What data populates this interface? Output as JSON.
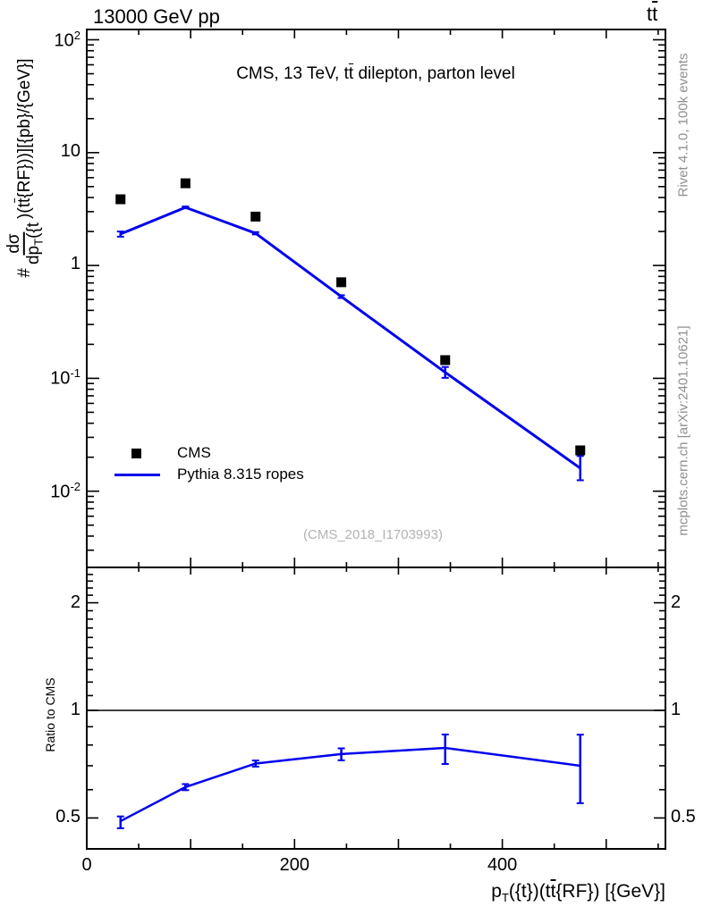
{
  "header": {
    "beam": "13000 GeV pp",
    "process_t": "t",
    "process_tbar": "t"
  },
  "panel_title": {
    "p1": "CMS, 13 TeV, t",
    "tbar": "t",
    "p2": " dilepton, parton level"
  },
  "watermark": "(CMS_2018_I1703993)",
  "credits": {
    "top": "Rivet 4.1.0,  100k events",
    "bottom": "mcplots.cern.ch [arXiv:2401.10621]"
  },
  "ylabel_parts": {
    "prefix": "#",
    "numerator": "dσ",
    "den_p1": "dp",
    "den_sub": "T",
    "den_p2": "({t",
    "suf_p1": ")(t",
    "suf_tbar": "t",
    "suf_p2": "{RF}))][{pb}/{GeV}]"
  },
  "xlabel_parts": {
    "p1": "p",
    "sub": "T",
    "p2": "({t})(t",
    "tbar": "t",
    "p3": "{RF}) [{GeV}]"
  },
  "ratio_ylabel": "Ratio to CMS",
  "legend": {
    "items": [
      {
        "label": "CMS",
        "marker": "square",
        "color": "#000000"
      },
      {
        "label": "Pythia 8.315 ropes",
        "marker": "line",
        "color": "#0000ee"
      }
    ]
  },
  "chart_data": {
    "type": "line",
    "title": "CMS, 13 TeV, tt̄ dilepton, parton level",
    "xlabel": "p_T({t})(tt̄{RF}) [{GeV}]",
    "ylabel": "#dσ/dp_T({t})(tt̄{RF}))][{pb}/{GeV}]",
    "ratio_ylabel": "Ratio to CMS",
    "x": [
      32.5,
      95,
      162.5,
      245,
      345,
      475
    ],
    "x_axis": {
      "min": 0,
      "max": 557,
      "major_ticks": [
        0,
        200,
        400
      ],
      "minor_step": 50,
      "unit": "GeV"
    },
    "y_axis_main": {
      "scale": "log",
      "min": 0.0021,
      "max": 123,
      "labeled_powers": [
        2,
        1,
        0,
        -1,
        -2
      ]
    },
    "y_axis_ratio": {
      "scale": "log",
      "min": 0.4,
      "max": 2.55,
      "labels": [
        2,
        1,
        0.5
      ],
      "reference_line": 1
    },
    "series": [
      {
        "name": "CMS",
        "style": "scatter-square",
        "color": "#000000",
        "values": [
          3.86,
          5.35,
          2.71,
          0.71,
          0.145,
          0.023
        ]
      },
      {
        "name": "Pythia 8.315 ropes",
        "style": "line",
        "color": "#0000ee",
        "values": [
          1.9,
          3.27,
          1.93,
          0.53,
          0.113,
          0.016
        ],
        "yerr_lo": [
          0.1,
          0.06,
          0.045,
          0.015,
          0.012,
          0.0035
        ],
        "yerr_hi": [
          0.1,
          0.06,
          0.045,
          0.015,
          0.013,
          0.0045
        ]
      }
    ],
    "ratio": {
      "name": "Pythia 8.315 ropes / CMS",
      "values": [
        0.49,
        0.61,
        0.71,
        0.755,
        0.785,
        0.7
      ],
      "yerr_lo": [
        0.022,
        0.012,
        0.014,
        0.03,
        0.077,
        0.15
      ],
      "yerr_hi": [
        0.015,
        0.012,
        0.014,
        0.028,
        0.071,
        0.155
      ]
    },
    "grid": false,
    "legend_position": "inside-left-bottom"
  }
}
